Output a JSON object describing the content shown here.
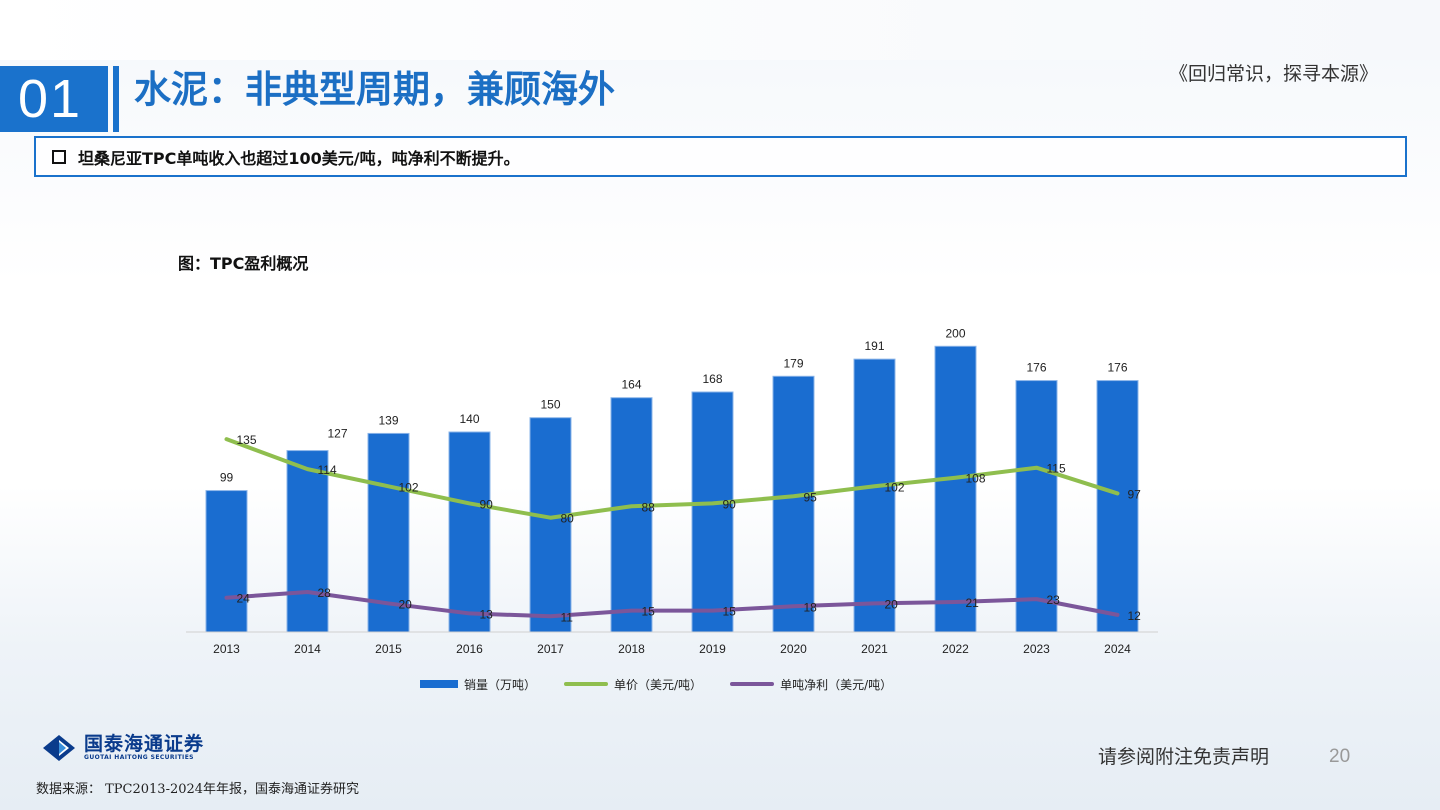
{
  "header": {
    "section_number": "01",
    "title": "水泥：非典型周期，兼顾海外",
    "series_title": "《回归常识，探寻本源》"
  },
  "summary": {
    "text": "坦桑尼亚TPC单吨收入也超过100美元/吨，吨净利不断提升。"
  },
  "figure": {
    "title": "图：TPC盈利概况"
  },
  "chart_data": {
    "type": "bar",
    "categories": [
      "2013",
      "2014",
      "2015",
      "2016",
      "2017",
      "2018",
      "2019",
      "2020",
      "2021",
      "2022",
      "2023",
      "2024"
    ],
    "series": [
      {
        "name": "销量（万吨）",
        "type": "bar",
        "color": "#1a6dd0",
        "values": [
          99,
          127,
          139,
          140,
          150,
          164,
          168,
          179,
          191,
          200,
          176,
          176
        ]
      },
      {
        "name": "单价（美元/吨）",
        "type": "line",
        "color": "#8fbe4e",
        "values": [
          135,
          114,
          102,
          90,
          80,
          88,
          90,
          95,
          102,
          108,
          115,
          97
        ]
      },
      {
        "name": "单吨净利（美元/吨）",
        "type": "line",
        "color": "#7b569a",
        "values": [
          24,
          28,
          20,
          13,
          11,
          15,
          15,
          18,
          20,
          21,
          23,
          12
        ]
      }
    ],
    "ylim": [
      0,
      210
    ],
    "grid": false,
    "legend_position": "bottom"
  },
  "footer": {
    "logo_cn": "国泰海通证券",
    "logo_en": "GUOTAI HAITONG SECURITIES",
    "disclaimer": "请参阅附注免责声明",
    "page_number": "20",
    "source": "数据来源： TPC2013-2024年年报，国泰海通证券研究"
  }
}
